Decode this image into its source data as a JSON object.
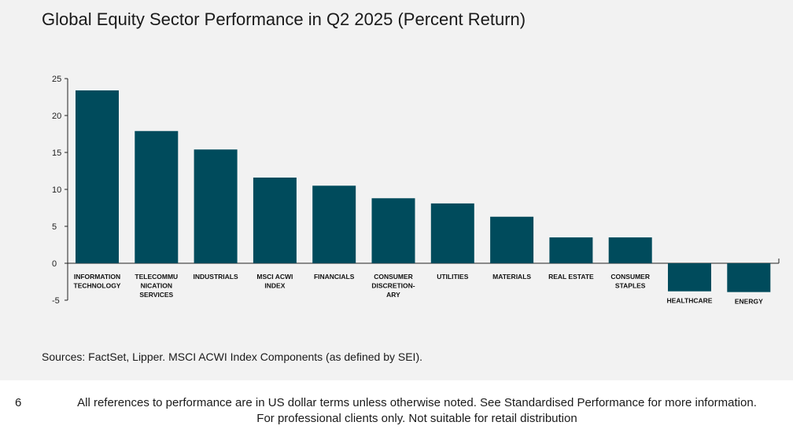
{
  "chart_data": {
    "type": "bar",
    "title": "Global Equity Sector Performance in Q2 2025 (Percent Return)",
    "categories": [
      [
        "INFORMATION",
        "TECHNOLOGY"
      ],
      [
        "TELECOMMU",
        "NICATION",
        "SERVICES"
      ],
      [
        "INDUSTRIALS"
      ],
      [
        "MSCI ACWI",
        "INDEX"
      ],
      [
        "FINANCIALS"
      ],
      [
        "CONSUMER",
        "DISCRETION-",
        "ARY"
      ],
      [
        "UTILITIES"
      ],
      [
        "MATERIALS"
      ],
      [
        "REAL ESTATE"
      ],
      [
        "CONSUMER",
        "STAPLES"
      ],
      [
        "HEALTHCARE"
      ],
      [
        "ENERGY"
      ]
    ],
    "values": [
      23.4,
      17.9,
      15.4,
      11.6,
      10.5,
      8.8,
      8.1,
      6.3,
      3.5,
      3.5,
      -3.8,
      -3.9
    ],
    "ylim": [
      -5,
      25
    ],
    "yticks": [
      25,
      20,
      15,
      10,
      5,
      0,
      -5
    ],
    "bar_color": "#004b5c",
    "xlabel": "",
    "ylabel": "",
    "grid": false
  },
  "sources": "Sources: FactSet, Lipper. MSCI ACWI Index Components (as defined by SEI).",
  "page_number": "6",
  "footer": {
    "line1": "All references to performance are in US dollar terms unless otherwise noted. See Standardised Performance for more information.",
    "line2": "For professional clients only. Not suitable for retail distribution"
  }
}
